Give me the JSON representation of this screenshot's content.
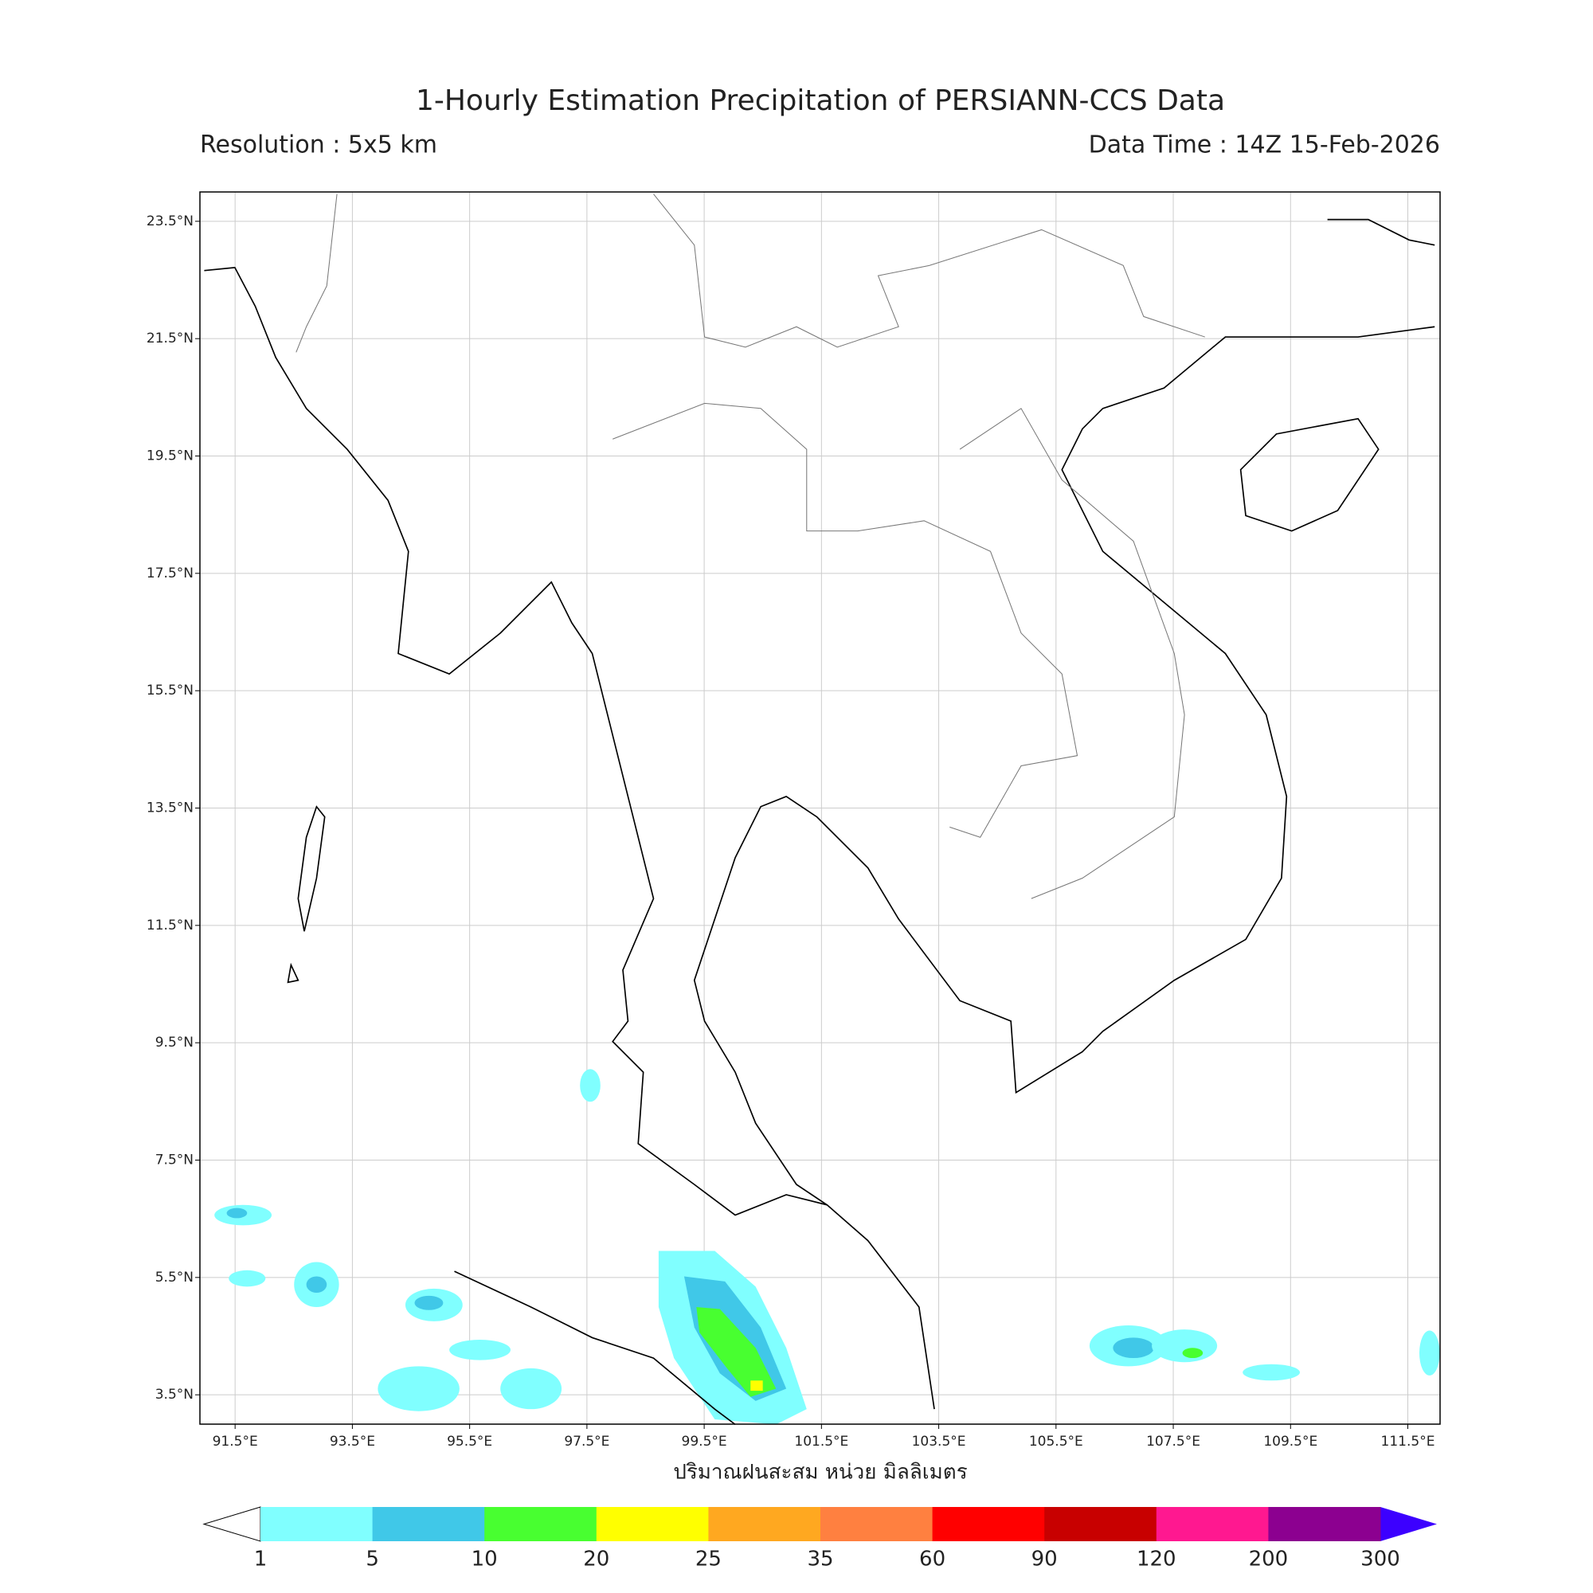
{
  "map": {
    "title": "1-Hourly Estimation Precipitation of PERSIANN-CCS Data",
    "resolution": "Resolution : 5x5 km",
    "data_time": "Data Time : 14Z 15-Feb-2026",
    "lonlim": [
      90.9,
      112.05
    ],
    "latlim": [
      3.0,
      24.0
    ],
    "lon_ticks": [
      {
        "value": 91.5,
        "label": "91.5°E"
      },
      {
        "value": 93.5,
        "label": "93.5°E"
      },
      {
        "value": 95.5,
        "label": "95.5°E"
      },
      {
        "value": 97.5,
        "label": "97.5°E"
      },
      {
        "value": 99.5,
        "label": "99.5°E"
      },
      {
        "value": 101.5,
        "label": "101.5°E"
      },
      {
        "value": 103.5,
        "label": "103.5°E"
      },
      {
        "value": 105.5,
        "label": "105.5°E"
      },
      {
        "value": 107.5,
        "label": "107.5°E"
      },
      {
        "value": 109.5,
        "label": "109.5°E"
      },
      {
        "value": 111.5,
        "label": "111.5°E"
      }
    ],
    "lat_ticks": [
      {
        "value": 23.5,
        "label": "23.5°N"
      },
      {
        "value": 21.5,
        "label": "21.5°N"
      },
      {
        "value": 19.5,
        "label": "19.5°N"
      },
      {
        "value": 17.5,
        "label": "17.5°N"
      },
      {
        "value": 15.5,
        "label": "15.5°N"
      },
      {
        "value": 13.5,
        "label": "13.5°N"
      },
      {
        "value": 11.5,
        "label": "11.5°N"
      },
      {
        "value": 9.5,
        "label": "9.5°N"
      },
      {
        "value": 7.5,
        "label": "7.5°N"
      },
      {
        "value": 5.5,
        "label": "5.5°N"
      },
      {
        "value": 3.5,
        "label": "3.5°N"
      }
    ],
    "grid": true
  },
  "colorbar": {
    "label": "ปริมาณฝนสะสม หน่วย มิลลิเมตร",
    "levels": [
      1,
      5,
      10,
      20,
      25,
      35,
      60,
      90,
      120,
      200,
      300
    ],
    "colors": [
      "#80ffff",
      "#40c8e8",
      "#48ff30",
      "#ffff00",
      "#ffa820",
      "#ff8040",
      "#ff0000",
      "#c80000",
      "#ff1890",
      "#8c0090"
    ],
    "under_color": "#ffffff",
    "over_color": "#3c00ff"
  }
}
